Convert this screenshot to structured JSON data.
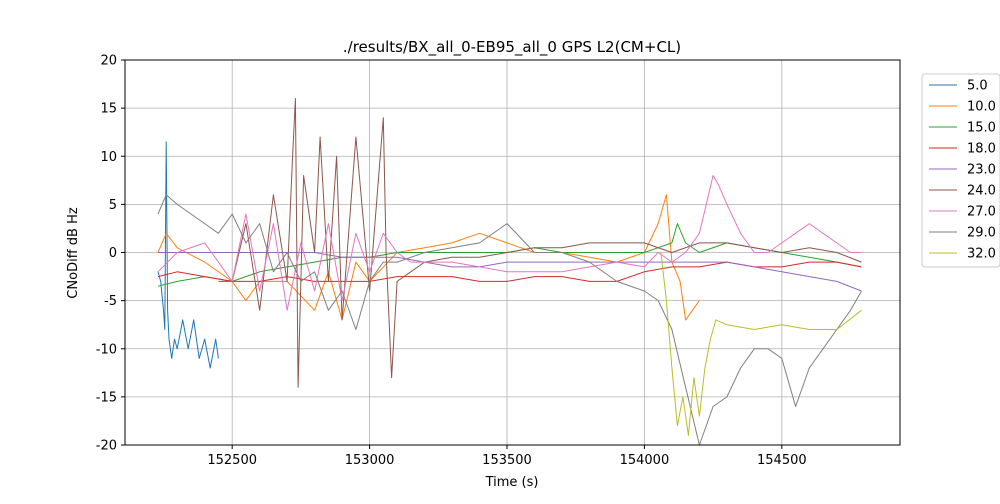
{
  "chart_data": {
    "type": "line",
    "title": "./results/BX_all_0-EB95_all_0 GPS L2(CM+CL)",
    "xlabel": "Time (s)",
    "ylabel": "CNoDiff dB Hz",
    "xlim": [
      152110,
      154930
    ],
    "ylim": [
      -20,
      20
    ],
    "xticks": [
      152500,
      153000,
      153500,
      154000,
      154500
    ],
    "yticks": [
      -20,
      -15,
      -10,
      -5,
      0,
      5,
      10,
      15,
      20
    ],
    "grid": true,
    "legend_placement": "outside-right",
    "series": [
      {
        "name": "5.0",
        "color": "#1f77b4",
        "x": [
          152230,
          152240,
          152250,
          152255,
          152260,
          152265,
          152270,
          152280,
          152290,
          152300,
          152320,
          152340,
          152360,
          152380,
          152400,
          152420,
          152440,
          152450
        ],
        "y": [
          -2,
          -3,
          -6,
          -8,
          11.5,
          -6,
          -9,
          -11,
          -9,
          -10,
          -7,
          -10,
          -7,
          -11,
          -9,
          -12,
          -9,
          -11
        ]
      },
      {
        "name": "10.0",
        "color": "#ff7f0e",
        "x": [
          152230,
          152260,
          152300,
          152400,
          152500,
          152550,
          152600,
          152700,
          152800,
          152850,
          152900,
          152950,
          153000,
          153100,
          153200,
          153300,
          153400,
          153500,
          153600,
          153700,
          153800,
          153900,
          154000,
          154050,
          154080,
          154100,
          154130,
          154150,
          154200
        ],
        "y": [
          0,
          2,
          0.5,
          -1,
          -3,
          -5,
          -3,
          -3,
          -6,
          -2,
          -7,
          -1,
          -3,
          0,
          0.5,
          1,
          2,
          1,
          0,
          0,
          -0.5,
          -1,
          0,
          3,
          6,
          -1,
          -3,
          -7,
          -5
        ]
      },
      {
        "name": "15.0",
        "color": "#2ca02c",
        "x": [
          152230,
          152300,
          152400,
          152500,
          152600,
          152700,
          152800,
          152900,
          153000,
          153100,
          153200,
          153300,
          153400,
          153500,
          153600,
          153700,
          153800,
          153900,
          154000,
          154050,
          154100,
          154120,
          154150,
          154200,
          154300,
          154400,
          154500,
          154600,
          154700,
          154790
        ],
        "y": [
          -3.5,
          -3,
          -2.5,
          -3,
          -2,
          -1.5,
          -1,
          -0.5,
          -0.5,
          0,
          0,
          0,
          0,
          0,
          0.5,
          0,
          0,
          0,
          0,
          0.5,
          1,
          3,
          1,
          0,
          1,
          0.5,
          0,
          -0.5,
          -1,
          -1.5
        ]
      },
      {
        "name": "18.0",
        "color": "#d62728",
        "x": [
          152230,
          152300,
          152400,
          152500,
          152600,
          152700,
          152800,
          152900,
          153000,
          153100,
          153200,
          153300,
          153400,
          153500,
          153600,
          153700,
          153800,
          153900,
          154000,
          154100,
          154200,
          154300,
          154400,
          154500,
          154600,
          154700,
          154790
        ],
        "y": [
          -2.5,
          -2,
          -2.5,
          -3,
          -3,
          -2.5,
          -3,
          -3,
          -3,
          -2.5,
          -2.5,
          -2.5,
          -3,
          -3,
          -2.5,
          -2.5,
          -3,
          -3,
          -2,
          -1.5,
          -1.5,
          -1,
          -1.5,
          -1.5,
          -1,
          -1,
          -1.5
        ]
      },
      {
        "name": "23.0",
        "color": "#9467bd",
        "x": [
          152230,
          152300,
          152400,
          152500,
          152600,
          152700,
          152800,
          152900,
          153000,
          153100,
          153200,
          153300,
          153400,
          153500,
          153600,
          153700,
          153800,
          153900,
          154000,
          154100,
          154200,
          154300,
          154400,
          154500,
          154600,
          154700,
          154790
        ],
        "y": [
          0,
          0,
          0,
          0,
          0,
          0,
          0,
          -0.5,
          -0.5,
          -0.5,
          -1,
          -1.5,
          -1.5,
          -1,
          -1,
          -1,
          -1,
          -1,
          -1,
          -1,
          -1,
          -1,
          -1.5,
          -2,
          -2.5,
          -3,
          -4
        ]
      },
      {
        "name": "24.0",
        "color": "#8c564b",
        "x": [
          152450,
          152500,
          152550,
          152600,
          152650,
          152700,
          152720,
          152730,
          152740,
          152760,
          152800,
          152820,
          152850,
          152880,
          152900,
          152950,
          153000,
          153050,
          153060,
          153080,
          153100,
          153150,
          153200,
          153300,
          153400,
          153500,
          153600,
          153700,
          153800,
          153900,
          154000,
          154100,
          154200,
          154300,
          154400,
          154500,
          154600,
          154700,
          154790
        ],
        "y": [
          -3,
          -3,
          3,
          -6,
          6,
          -3,
          10,
          16,
          -14,
          8,
          0,
          12,
          -3,
          10,
          -7,
          12,
          -4,
          14,
          0,
          -13,
          -3,
          -2,
          -1,
          -0.5,
          -0.5,
          0,
          0.5,
          0.5,
          1,
          1,
          1,
          0,
          1,
          1,
          0.5,
          0,
          0.5,
          0,
          -1
        ]
      },
      {
        "name": "27.0",
        "color": "#e377c2",
        "x": [
          152230,
          152300,
          152400,
          152500,
          152550,
          152600,
          152650,
          152700,
          152750,
          152800,
          152850,
          152900,
          152950,
          153000,
          153050,
          153100,
          153150,
          153200,
          153300,
          153400,
          153500,
          153600,
          153700,
          153800,
          153900,
          154000,
          154050,
          154100,
          154150,
          154200,
          154250,
          154270,
          154300,
          154350,
          154400,
          154450,
          154500,
          154550,
          154600,
          154650,
          154700,
          154750,
          154790
        ],
        "y": [
          -2,
          0,
          1,
          -3,
          4,
          -4,
          3,
          -6,
          1,
          -4,
          3,
          -5,
          2,
          -2,
          2,
          0,
          -1,
          -1,
          -1,
          -1.5,
          -2,
          -2,
          -2,
          -1.5,
          -1,
          -1.5,
          0,
          -1,
          0,
          2,
          8,
          7,
          5,
          2,
          0,
          0,
          1,
          2,
          3,
          2,
          1,
          0,
          0
        ]
      },
      {
        "name": "29.0",
        "color": "#7f7f7f",
        "x": [
          152230,
          152260,
          152300,
          152350,
          152400,
          152450,
          152500,
          152550,
          152600,
          152650,
          152700,
          152750,
          152800,
          152850,
          152900,
          152950,
          153000,
          153050,
          153100,
          153200,
          153300,
          153400,
          153500,
          153600,
          153700,
          153800,
          153900,
          154000,
          154050,
          154100,
          154150,
          154200,
          154250,
          154300,
          154350,
          154400,
          154450,
          154500,
          154550,
          154600,
          154650,
          154700,
          154750,
          154790
        ],
        "y": [
          4,
          6,
          5,
          4,
          3,
          2,
          4,
          1,
          3,
          -2,
          0,
          -3,
          -2,
          -6,
          -4,
          -8,
          -3,
          -1,
          -1,
          0,
          0.5,
          1,
          3,
          0,
          0,
          -1,
          -3,
          -4,
          -5,
          -8,
          -14,
          -20,
          -16,
          -15,
          -12,
          -10,
          -10,
          -11,
          -16,
          -12,
          -10,
          -8,
          -6,
          -4
        ]
      },
      {
        "name": "32.0",
        "color": "#bcbd22",
        "x": [
          154060,
          154080,
          154100,
          154120,
          154140,
          154160,
          154180,
          154200,
          154220,
          154240,
          154260,
          154300,
          154400,
          154500,
          154600,
          154700,
          154790
        ],
        "y": [
          0,
          -5,
          -12,
          -18,
          -15,
          -19,
          -13,
          -17,
          -12,
          -9,
          -7,
          -7.5,
          -8,
          -7.5,
          -8,
          -8,
          -6
        ]
      }
    ]
  }
}
